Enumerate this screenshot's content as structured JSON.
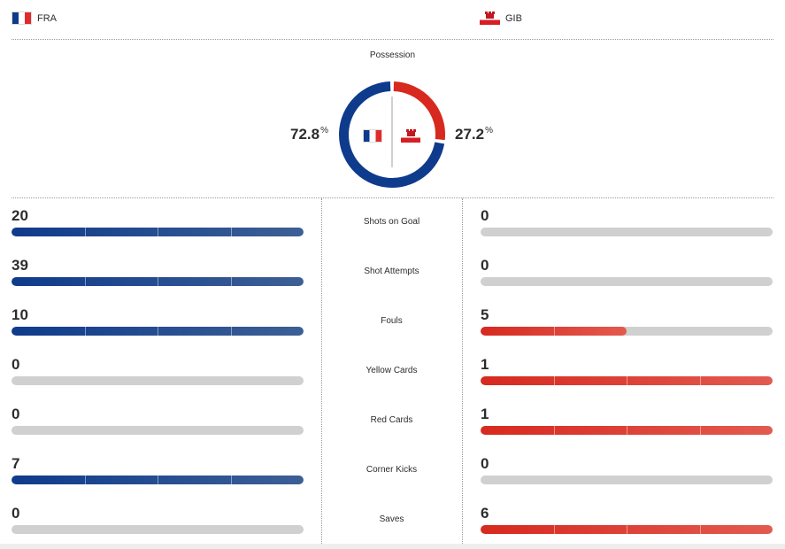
{
  "teams": {
    "home": {
      "abbr": "FRA",
      "flag": "flag-france-icon",
      "color": "#0f3b8c",
      "bar_color_end": "#3c5f95"
    },
    "away": {
      "abbr": "GIB",
      "flag": "flag-gibraltar-icon",
      "color": "#d7291f",
      "bar_color_end": "#e35a4f"
    }
  },
  "possession": {
    "title": "Possession",
    "home_value": "72.8",
    "away_value": "27.2",
    "unit": "%",
    "home_fraction": 0.728,
    "away_fraction": 0.272
  },
  "stats": [
    {
      "label": "Shots on Goal",
      "home": "20",
      "away": "0",
      "home_frac": 1.0,
      "away_frac": 0.0
    },
    {
      "label": "Shot Attempts",
      "home": "39",
      "away": "0",
      "home_frac": 1.0,
      "away_frac": 0.0
    },
    {
      "label": "Fouls",
      "home": "10",
      "away": "5",
      "home_frac": 1.0,
      "away_frac": 0.5
    },
    {
      "label": "Yellow Cards",
      "home": "0",
      "away": "1",
      "home_frac": 0.0,
      "away_frac": 1.0
    },
    {
      "label": "Red Cards",
      "home": "0",
      "away": "1",
      "home_frac": 0.0,
      "away_frac": 1.0
    },
    {
      "label": "Corner Kicks",
      "home": "7",
      "away": "0",
      "home_frac": 1.0,
      "away_frac": 0.0
    },
    {
      "label": "Saves",
      "home": "0",
      "away": "6",
      "home_frac": 0.0,
      "away_frac": 1.0
    }
  ]
}
